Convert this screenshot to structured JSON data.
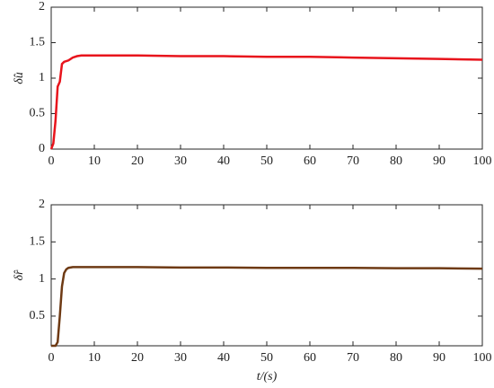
{
  "chart_data": [
    {
      "type": "line",
      "y_label": "δ̂u",
      "x": [
        0,
        0.5,
        1,
        1.5,
        2,
        2.5,
        3,
        4,
        5,
        6,
        7,
        10,
        20,
        30,
        40,
        50,
        60,
        70,
        80,
        90,
        100
      ],
      "series": [
        {
          "name": "δ̂u",
          "color": "#e8141c",
          "values": [
            0,
            0.08,
            0.4,
            0.88,
            0.95,
            1.2,
            1.23,
            1.25,
            1.29,
            1.31,
            1.32,
            1.32,
            1.32,
            1.31,
            1.31,
            1.3,
            1.3,
            1.29,
            1.28,
            1.27,
            1.26
          ]
        }
      ],
      "xlim": [
        0,
        100
      ],
      "xticks": [
        0,
        10,
        20,
        30,
        40,
        50,
        60,
        70,
        80,
        90,
        100
      ],
      "ylim": [
        0,
        2
      ],
      "yticks": [
        0,
        0.5,
        1,
        1.5,
        2
      ]
    },
    {
      "type": "line",
      "y_label": "δ̂r",
      "x_label": "t/(s)",
      "x": [
        0,
        1,
        1.5,
        2,
        2.5,
        3,
        3.5,
        4,
        5,
        7,
        10,
        20,
        30,
        40,
        50,
        60,
        70,
        80,
        90,
        100
      ],
      "series": [
        {
          "name": "δ̂r",
          "color": "#6e3a14",
          "values": [
            0.1,
            0.1,
            0.15,
            0.5,
            0.9,
            1.08,
            1.13,
            1.15,
            1.16,
            1.16,
            1.16,
            1.16,
            1.155,
            1.155,
            1.15,
            1.15,
            1.15,
            1.145,
            1.145,
            1.14
          ]
        }
      ],
      "xlim": [
        0,
        100
      ],
      "xticks": [
        0,
        10,
        20,
        30,
        40,
        50,
        60,
        70,
        80,
        90,
        100
      ],
      "ylim": [
        0.1,
        2
      ],
      "yticks": [
        0.5,
        1,
        1.5,
        2
      ]
    }
  ]
}
